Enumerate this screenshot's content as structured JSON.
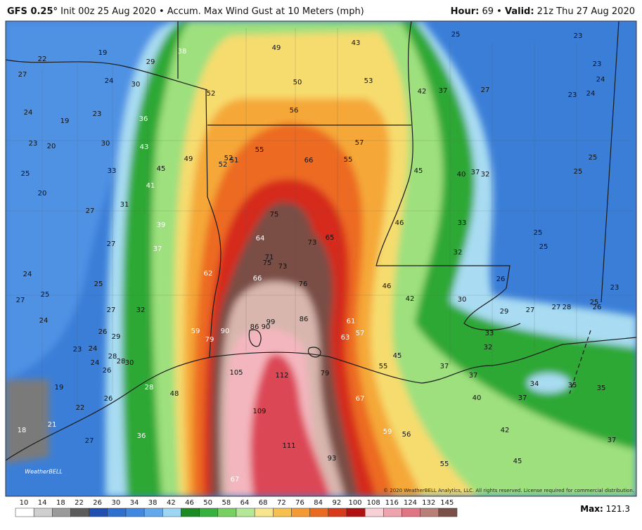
{
  "header": {
    "model": "GFS 0.25°",
    "description": "Init 00z 25 Aug 2020 • Accum. Max Wind Gust at 10 Meters (mph)",
    "hour_label": "Hour:",
    "hour": "69",
    "separator": "•",
    "valid_label": "Valid:",
    "valid": "21z Thu 27 Aug 2020"
  },
  "map_labels": [
    22,
    19,
    27,
    29,
    38,
    49,
    43,
    25,
    23,
    24,
    30,
    52,
    50,
    53,
    42,
    37,
    27,
    23,
    24,
    23,
    24,
    24,
    23,
    19,
    36,
    56,
    23,
    20,
    30,
    43,
    57,
    55,
    49,
    52,
    51,
    52,
    66,
    55,
    25,
    25,
    33,
    45,
    45,
    40,
    37,
    32,
    25,
    20,
    41,
    31,
    27,
    75,
    46,
    33,
    39,
    64,
    73,
    65,
    25,
    27,
    37,
    71,
    75,
    73,
    25,
    32,
    24,
    62,
    66,
    25,
    76,
    46,
    26,
    23,
    27,
    25,
    42,
    30,
    24,
    27,
    32,
    86,
    99,
    86,
    90,
    29,
    27,
    27,
    28,
    26,
    25,
    61,
    59,
    90,
    26,
    29,
    79,
    57,
    63,
    33,
    23,
    24,
    28,
    28,
    30,
    24,
    26,
    32,
    45,
    55,
    37,
    105,
    112,
    79,
    37,
    34,
    35,
    35,
    19,
    28,
    48,
    67,
    40,
    37,
    26,
    22,
    109,
    18,
    21,
    36,
    59,
    56,
    42,
    111,
    37,
    27,
    93,
    55,
    45,
    67
  ],
  "logo": "WeatherBELL",
  "copyright": "© 2020 WeatherBELL Analytics, LLC. All rights reserved. License required for commercial distribution.",
  "colorbar": {
    "ticks": [
      10,
      14,
      18,
      22,
      26,
      30,
      34,
      38,
      42,
      46,
      50,
      58,
      64,
      68,
      72,
      76,
      84,
      92,
      100,
      108,
      116,
      124,
      132,
      145
    ],
    "colors": [
      "#ffffff",
      "#cfcfcf",
      "#9a9a9a",
      "#5c5c5c",
      "#1f4fb0",
      "#2f6fd0",
      "#4088e0",
      "#62a8ea",
      "#9cd6f2",
      "#1e8a26",
      "#38b040",
      "#78d062",
      "#b4e896",
      "#f7e48e",
      "#f6c04e",
      "#f39a34",
      "#ea6a22",
      "#d83a1c",
      "#b01212",
      "#f6d0d4",
      "#eea4ae",
      "#e07684",
      "#b88078",
      "#7a5048"
    ]
  },
  "max_label": "Max:",
  "max_value": "121.3"
}
